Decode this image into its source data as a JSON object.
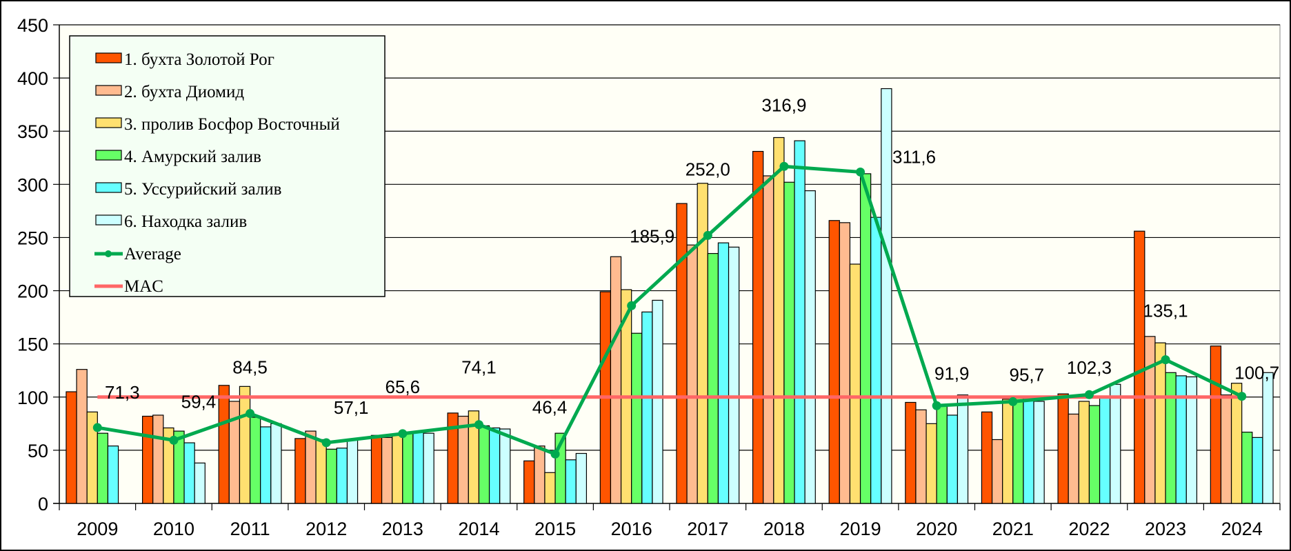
{
  "chart_data": {
    "type": "bar",
    "title": "",
    "xlabel": "",
    "ylabel": "",
    "ylim": [
      0,
      450
    ],
    "yticks": [
      0,
      50,
      100,
      150,
      200,
      250,
      300,
      350,
      400,
      450
    ],
    "grid": true,
    "legend_position": "top-left",
    "categories": [
      "2009",
      "2010",
      "2011",
      "2012",
      "2013",
      "2014",
      "2015",
      "2016",
      "2017",
      "2018",
      "2019",
      "2020",
      "2021",
      "2022",
      "2023",
      "2024"
    ],
    "series": [
      {
        "name": "1. бухта Золотой Рог",
        "color": "#FF5500",
        "values": [
          105,
          82,
          111,
          61,
          64,
          85,
          40,
          199,
          282,
          331,
          266,
          95,
          86,
          103,
          256,
          148
        ]
      },
      {
        "name": "2. бухта Диомид",
        "color": "#FFBB90",
        "values": [
          126,
          83,
          96,
          68,
          62,
          82,
          54,
          232,
          243,
          308,
          264,
          88,
          60,
          84,
          157,
          102
        ]
      },
      {
        "name": "3. пролив Босфор Восточный",
        "color": "#FFE070",
        "values": [
          86,
          71,
          110,
          60,
          65,
          87,
          29,
          201,
          301,
          344,
          225,
          75,
          98,
          96,
          151,
          113
        ]
      },
      {
        "name": "4. Амурский залив",
        "color": "#66FF66",
        "values": [
          66,
          68,
          81,
          51,
          67,
          73,
          66,
          160,
          235,
          302,
          310,
          92,
          99,
          92,
          123,
          67
        ]
      },
      {
        "name": "5. Уссурийский залив",
        "color": "#66FFFF",
        "values": [
          54,
          57,
          72,
          52,
          67,
          71,
          41,
          180,
          245,
          341,
          269,
          83,
          98,
          101,
          120,
          62
        ]
      },
      {
        "name": "6. Находка залив",
        "color": "#CCFFFF",
        "values": [
          null,
          38,
          75,
          60,
          66,
          70,
          47,
          191,
          241,
          294,
          390,
          102,
          96,
          112,
          119,
          123
        ]
      }
    ],
    "lines": [
      {
        "name": "Average",
        "color": "#00A94F",
        "marker": "circle",
        "values": [
          71.3,
          59.4,
          84.5,
          57.1,
          65.6,
          74.1,
          46.4,
          185.9,
          252.0,
          316.9,
          311.6,
          91.9,
          95.7,
          102.3,
          135.1,
          100.7
        ],
        "labels": [
          "71,3",
          "59,4",
          "84,5",
          "57,1",
          "65,6",
          "74,1",
          "46,4",
          "185,9",
          "252,0",
          "316,9",
          "311,6",
          "91,9",
          "95,7",
          "102,3",
          "135,1",
          "100,7"
        ]
      },
      {
        "name": "MAC",
        "color": "#FF6666",
        "value": 100
      }
    ]
  }
}
